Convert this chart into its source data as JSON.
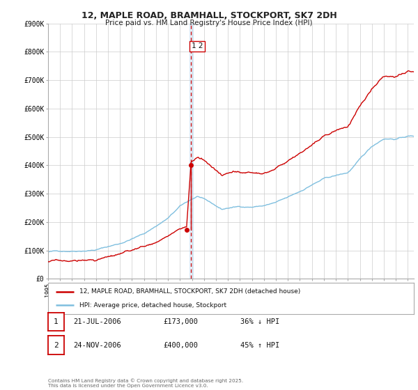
{
  "title": "12, MAPLE ROAD, BRAMHALL, STOCKPORT, SK7 2DH",
  "subtitle": "Price paid vs. HM Land Registry's House Price Index (HPI)",
  "ylim": [
    0,
    900000
  ],
  "xlim_start": 1995.0,
  "xlim_end": 2025.5,
  "hpi_color": "#7fbfdf",
  "property_color": "#cc0000",
  "vline_color": "#cc0000",
  "vline_x": 2006.92,
  "marker1_date": 2006.55,
  "marker1_price": 173000,
  "marker2_date": 2006.92,
  "marker2_price": 400000,
  "annotation_label": "1 2",
  "legend_property": "12, MAPLE ROAD, BRAMHALL, STOCKPORT, SK7 2DH (detached house)",
  "legend_hpi": "HPI: Average price, detached house, Stockport",
  "table_rows": [
    {
      "num": "1",
      "date": "21-JUL-2006",
      "price": "£173,000",
      "hpi": "36% ↓ HPI"
    },
    {
      "num": "2",
      "date": "24-NOV-2006",
      "price": "£400,000",
      "hpi": "45% ↑ HPI"
    }
  ],
  "footer": "Contains HM Land Registry data © Crown copyright and database right 2025.\nThis data is licensed under the Open Government Licence v3.0.",
  "background_color": "#ffffff",
  "grid_color": "#cccccc",
  "yticks": [
    0,
    100000,
    200000,
    300000,
    400000,
    500000,
    600000,
    700000,
    800000,
    900000
  ],
  "ytick_labels": [
    "£0",
    "£100K",
    "£200K",
    "£300K",
    "£400K",
    "£500K",
    "£600K",
    "£700K",
    "£800K",
    "£900K"
  ]
}
